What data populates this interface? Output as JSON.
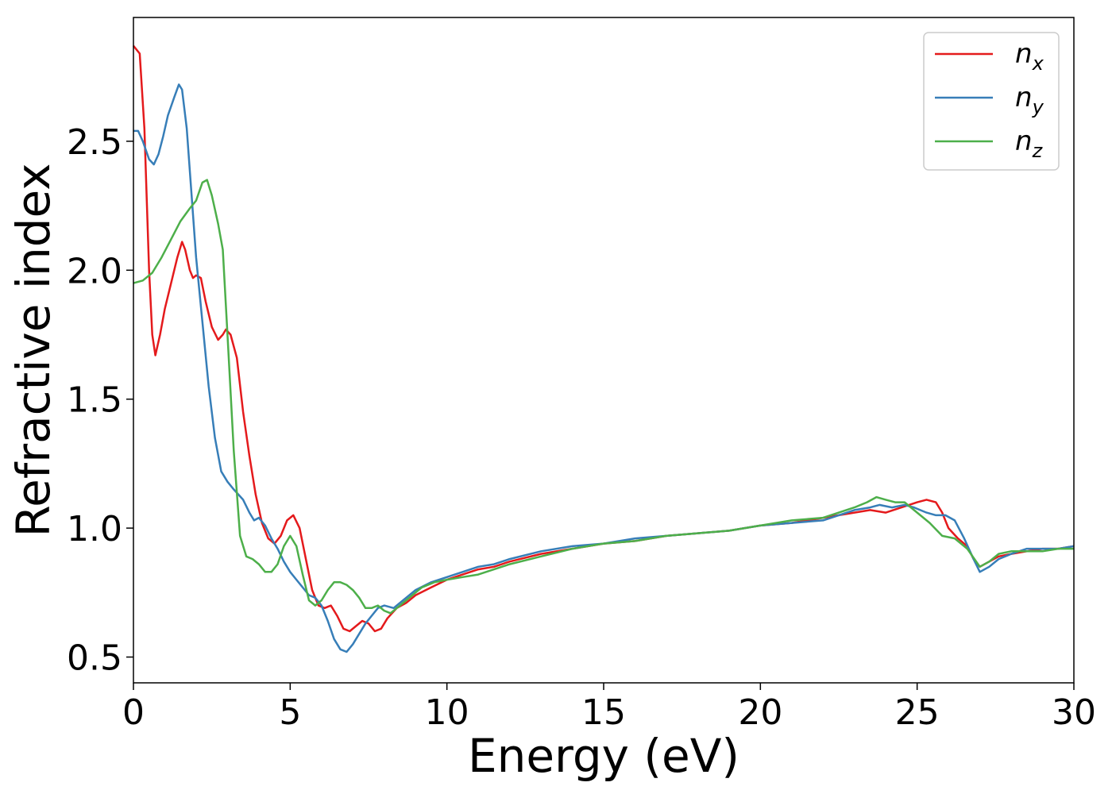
{
  "chart_data": {
    "type": "line",
    "title": "",
    "xlabel": "Energy (eV)",
    "ylabel": "Refractive index",
    "xlim": [
      0,
      30
    ],
    "ylim": [
      0.4,
      2.98
    ],
    "xticks": [
      0,
      5,
      10,
      15,
      20,
      25,
      30
    ],
    "xtick_labels": [
      "0",
      "5",
      "10",
      "15",
      "20",
      "25",
      "30"
    ],
    "yticks": [
      0.5,
      1.0,
      1.5,
      2.0,
      2.5
    ],
    "ytick_labels": [
      "0.5",
      "1.0",
      "1.5",
      "2.0",
      "2.5"
    ],
    "grid": false,
    "legend_position": "top-right",
    "series": [
      {
        "name": "n",
        "subscript": "x",
        "color": "#e41a1c",
        "points": [
          [
            0,
            2.87
          ],
          [
            0.2,
            2.84
          ],
          [
            0.35,
            2.55
          ],
          [
            0.5,
            2.0
          ],
          [
            0.6,
            1.75
          ],
          [
            0.7,
            1.67
          ],
          [
            0.85,
            1.75
          ],
          [
            1.0,
            1.85
          ],
          [
            1.2,
            1.95
          ],
          [
            1.4,
            2.05
          ],
          [
            1.55,
            2.11
          ],
          [
            1.65,
            2.08
          ],
          [
            1.8,
            2.0
          ],
          [
            1.9,
            1.97
          ],
          [
            2.0,
            1.98
          ],
          [
            2.15,
            1.97
          ],
          [
            2.3,
            1.88
          ],
          [
            2.5,
            1.78
          ],
          [
            2.7,
            1.73
          ],
          [
            2.85,
            1.75
          ],
          [
            2.95,
            1.77
          ],
          [
            3.1,
            1.75
          ],
          [
            3.3,
            1.66
          ],
          [
            3.5,
            1.45
          ],
          [
            3.7,
            1.28
          ],
          [
            3.9,
            1.13
          ],
          [
            4.1,
            1.02
          ],
          [
            4.3,
            0.96
          ],
          [
            4.5,
            0.94
          ],
          [
            4.7,
            0.97
          ],
          [
            4.9,
            1.03
          ],
          [
            5.1,
            1.05
          ],
          [
            5.3,
            1.0
          ],
          [
            5.5,
            0.88
          ],
          [
            5.7,
            0.76
          ],
          [
            5.9,
            0.7
          ],
          [
            6.1,
            0.69
          ],
          [
            6.3,
            0.7
          ],
          [
            6.5,
            0.66
          ],
          [
            6.7,
            0.61
          ],
          [
            6.9,
            0.6
          ],
          [
            7.1,
            0.62
          ],
          [
            7.3,
            0.64
          ],
          [
            7.5,
            0.63
          ],
          [
            7.7,
            0.6
          ],
          [
            7.9,
            0.61
          ],
          [
            8.1,
            0.65
          ],
          [
            8.4,
            0.69
          ],
          [
            8.7,
            0.71
          ],
          [
            9.0,
            0.74
          ],
          [
            9.5,
            0.77
          ],
          [
            10.0,
            0.8
          ],
          [
            10.5,
            0.82
          ],
          [
            11.0,
            0.84
          ],
          [
            11.5,
            0.85
          ],
          [
            12.0,
            0.87
          ],
          [
            13.0,
            0.9
          ],
          [
            14.0,
            0.92
          ],
          [
            15.0,
            0.94
          ],
          [
            16.0,
            0.95
          ],
          [
            17.0,
            0.97
          ],
          [
            18.0,
            0.98
          ],
          [
            19.0,
            0.99
          ],
          [
            20.0,
            1.01
          ],
          [
            21.0,
            1.02
          ],
          [
            22.0,
            1.04
          ],
          [
            22.5,
            1.05
          ],
          [
            23.0,
            1.06
          ],
          [
            23.5,
            1.07
          ],
          [
            24.0,
            1.06
          ],
          [
            24.5,
            1.08
          ],
          [
            25.0,
            1.1
          ],
          [
            25.3,
            1.11
          ],
          [
            25.6,
            1.1
          ],
          [
            25.8,
            1.06
          ],
          [
            26.0,
            1.0
          ],
          [
            26.3,
            0.96
          ],
          [
            26.6,
            0.93
          ],
          [
            26.8,
            0.88
          ],
          [
            27.0,
            0.85
          ],
          [
            27.3,
            0.87
          ],
          [
            27.6,
            0.89
          ],
          [
            28.0,
            0.9
          ],
          [
            28.5,
            0.91
          ],
          [
            29.0,
            0.92
          ],
          [
            29.5,
            0.92
          ],
          [
            30.0,
            0.93
          ]
        ]
      },
      {
        "name": "n",
        "subscript": "y",
        "color": "#377eb8",
        "points": [
          [
            0,
            2.54
          ],
          [
            0.15,
            2.54
          ],
          [
            0.3,
            2.5
          ],
          [
            0.5,
            2.43
          ],
          [
            0.65,
            2.41
          ],
          [
            0.8,
            2.45
          ],
          [
            0.95,
            2.52
          ],
          [
            1.1,
            2.6
          ],
          [
            1.3,
            2.67
          ],
          [
            1.45,
            2.72
          ],
          [
            1.55,
            2.7
          ],
          [
            1.7,
            2.55
          ],
          [
            1.85,
            2.3
          ],
          [
            2.0,
            2.05
          ],
          [
            2.2,
            1.8
          ],
          [
            2.4,
            1.55
          ],
          [
            2.6,
            1.35
          ],
          [
            2.8,
            1.22
          ],
          [
            3.0,
            1.18
          ],
          [
            3.2,
            1.15
          ],
          [
            3.5,
            1.11
          ],
          [
            3.7,
            1.06
          ],
          [
            3.85,
            1.03
          ],
          [
            4.0,
            1.04
          ],
          [
            4.2,
            1.01
          ],
          [
            4.4,
            0.96
          ],
          [
            4.6,
            0.92
          ],
          [
            4.8,
            0.87
          ],
          [
            5.0,
            0.83
          ],
          [
            5.2,
            0.8
          ],
          [
            5.4,
            0.77
          ],
          [
            5.6,
            0.74
          ],
          [
            5.8,
            0.73
          ],
          [
            6.0,
            0.7
          ],
          [
            6.2,
            0.64
          ],
          [
            6.4,
            0.57
          ],
          [
            6.6,
            0.53
          ],
          [
            6.8,
            0.52
          ],
          [
            7.0,
            0.55
          ],
          [
            7.2,
            0.59
          ],
          [
            7.4,
            0.63
          ],
          [
            7.6,
            0.66
          ],
          [
            7.8,
            0.69
          ],
          [
            8.0,
            0.7
          ],
          [
            8.3,
            0.69
          ],
          [
            8.6,
            0.72
          ],
          [
            9.0,
            0.76
          ],
          [
            9.5,
            0.79
          ],
          [
            10.0,
            0.81
          ],
          [
            10.5,
            0.83
          ],
          [
            11.0,
            0.85
          ],
          [
            11.5,
            0.86
          ],
          [
            12.0,
            0.88
          ],
          [
            13.0,
            0.91
          ],
          [
            14.0,
            0.93
          ],
          [
            15.0,
            0.94
          ],
          [
            16.0,
            0.96
          ],
          [
            17.0,
            0.97
          ],
          [
            18.0,
            0.98
          ],
          [
            19.0,
            0.99
          ],
          [
            20.0,
            1.01
          ],
          [
            21.0,
            1.02
          ],
          [
            22.0,
            1.03
          ],
          [
            22.5,
            1.05
          ],
          [
            23.0,
            1.07
          ],
          [
            23.5,
            1.08
          ],
          [
            23.8,
            1.09
          ],
          [
            24.2,
            1.08
          ],
          [
            24.6,
            1.09
          ],
          [
            24.9,
            1.08
          ],
          [
            25.3,
            1.06
          ],
          [
            25.6,
            1.05
          ],
          [
            25.9,
            1.05
          ],
          [
            26.2,
            1.03
          ],
          [
            26.5,
            0.96
          ],
          [
            26.8,
            0.88
          ],
          [
            27.0,
            0.83
          ],
          [
            27.3,
            0.85
          ],
          [
            27.6,
            0.88
          ],
          [
            28.0,
            0.9
          ],
          [
            28.5,
            0.92
          ],
          [
            29.0,
            0.92
          ],
          [
            29.5,
            0.92
          ],
          [
            30.0,
            0.93
          ]
        ]
      },
      {
        "name": "n",
        "subscript": "z",
        "color": "#4daf4a",
        "points": [
          [
            0,
            1.95
          ],
          [
            0.3,
            1.96
          ],
          [
            0.6,
            1.99
          ],
          [
            0.9,
            2.05
          ],
          [
            1.2,
            2.12
          ],
          [
            1.5,
            2.19
          ],
          [
            1.8,
            2.24
          ],
          [
            2.0,
            2.27
          ],
          [
            2.2,
            2.34
          ],
          [
            2.35,
            2.35
          ],
          [
            2.5,
            2.29
          ],
          [
            2.7,
            2.18
          ],
          [
            2.85,
            2.08
          ],
          [
            3.0,
            1.75
          ],
          [
            3.2,
            1.3
          ],
          [
            3.4,
            0.97
          ],
          [
            3.6,
            0.89
          ],
          [
            3.8,
            0.88
          ],
          [
            4.0,
            0.86
          ],
          [
            4.2,
            0.83
          ],
          [
            4.4,
            0.83
          ],
          [
            4.6,
            0.86
          ],
          [
            4.8,
            0.93
          ],
          [
            5.0,
            0.97
          ],
          [
            5.2,
            0.93
          ],
          [
            5.4,
            0.82
          ],
          [
            5.6,
            0.72
          ],
          [
            5.8,
            0.7
          ],
          [
            6.0,
            0.72
          ],
          [
            6.2,
            0.76
          ],
          [
            6.4,
            0.79
          ],
          [
            6.6,
            0.79
          ],
          [
            6.8,
            0.78
          ],
          [
            7.0,
            0.76
          ],
          [
            7.2,
            0.73
          ],
          [
            7.4,
            0.69
          ],
          [
            7.6,
            0.69
          ],
          [
            7.8,
            0.7
          ],
          [
            8.0,
            0.68
          ],
          [
            8.2,
            0.67
          ],
          [
            8.5,
            0.7
          ],
          [
            8.8,
            0.73
          ],
          [
            9.2,
            0.77
          ],
          [
            9.6,
            0.79
          ],
          [
            10.0,
            0.8
          ],
          [
            10.5,
            0.81
          ],
          [
            11.0,
            0.82
          ],
          [
            11.5,
            0.84
          ],
          [
            12.0,
            0.86
          ],
          [
            13.0,
            0.89
          ],
          [
            14.0,
            0.92
          ],
          [
            15.0,
            0.94
          ],
          [
            16.0,
            0.95
          ],
          [
            17.0,
            0.97
          ],
          [
            18.0,
            0.98
          ],
          [
            19.0,
            0.99
          ],
          [
            20.0,
            1.01
          ],
          [
            21.0,
            1.03
          ],
          [
            22.0,
            1.04
          ],
          [
            22.5,
            1.06
          ],
          [
            23.0,
            1.08
          ],
          [
            23.4,
            1.1
          ],
          [
            23.7,
            1.12
          ],
          [
            24.0,
            1.11
          ],
          [
            24.3,
            1.1
          ],
          [
            24.6,
            1.1
          ],
          [
            25.0,
            1.06
          ],
          [
            25.4,
            1.02
          ],
          [
            25.8,
            0.97
          ],
          [
            26.2,
            0.96
          ],
          [
            26.6,
            0.92
          ],
          [
            27.0,
            0.85
          ],
          [
            27.3,
            0.87
          ],
          [
            27.6,
            0.9
          ],
          [
            28.0,
            0.91
          ],
          [
            28.5,
            0.91
          ],
          [
            29.0,
            0.91
          ],
          [
            29.5,
            0.92
          ],
          [
            30.0,
            0.92
          ]
        ]
      }
    ]
  }
}
